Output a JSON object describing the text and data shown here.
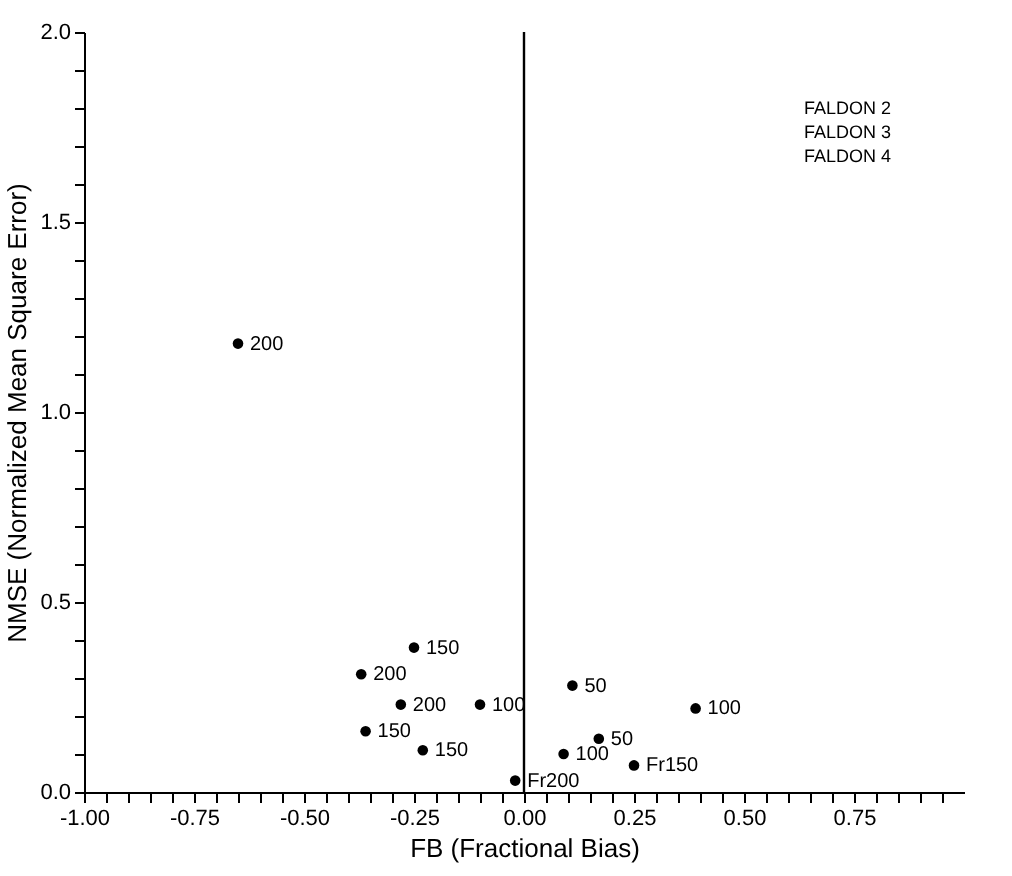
{
  "chart_data": {
    "type": "scatter",
    "xlabel": "FB (Fractional Bias)",
    "ylabel": "NMSE (Normalized Mean Square Error)",
    "x": [
      -0.65,
      -0.37,
      -0.25,
      -0.28,
      -0.1,
      -0.36,
      -0.23,
      -0.02,
      0.11,
      0.09,
      0.17,
      0.25,
      0.39
    ],
    "values": [
      1.18,
      0.31,
      0.38,
      0.23,
      0.23,
      0.16,
      0.11,
      0.03,
      0.28,
      0.1,
      0.14,
      0.07,
      0.22
    ],
    "color": "#000000",
    "marker": "circle",
    "grid": false,
    "xlim": [
      -1,
      1
    ],
    "xticks": [
      {
        "value": -1,
        "label": "-1.00"
      },
      {
        "value": -0.95,
        "label": null
      },
      {
        "value": -0.9,
        "label": null
      },
      {
        "value": -0.85,
        "label": null
      },
      {
        "value": -0.8,
        "label": null
      },
      {
        "value": -0.75,
        "label": "-0.75"
      },
      {
        "value": -0.7,
        "label": null
      },
      {
        "value": -0.65,
        "label": null
      },
      {
        "value": -0.6,
        "label": null
      },
      {
        "value": -0.55,
        "label": null
      },
      {
        "value": -0.5,
        "label": "-0.50"
      },
      {
        "value": -0.45,
        "label": null
      },
      {
        "value": -0.4,
        "label": null
      },
      {
        "value": -0.35,
        "label": null
      },
      {
        "value": -0.3,
        "label": null
      },
      {
        "value": -0.25,
        "label": "-0.25"
      },
      {
        "value": -0.2,
        "label": null
      },
      {
        "value": -0.15,
        "label": null
      },
      {
        "value": -0.1,
        "label": null
      },
      {
        "value": -0.05,
        "label": null
      },
      {
        "value": 0,
        "label": "0.00"
      },
      {
        "value": 0.05,
        "label": null
      },
      {
        "value": 0.1,
        "label": null
      },
      {
        "value": 0.15,
        "label": null
      },
      {
        "value": 0.2,
        "label": null
      },
      {
        "value": 0.25,
        "label": "0.25"
      },
      {
        "value": 0.3,
        "label": null
      },
      {
        "value": 0.35,
        "label": null
      },
      {
        "value": 0.4,
        "label": null
      },
      {
        "value": 0.45,
        "label": null
      },
      {
        "value": 0.5,
        "label": "0.50"
      },
      {
        "value": 0.55,
        "label": null
      },
      {
        "value": 0.6,
        "label": null
      },
      {
        "value": 0.65,
        "label": null
      },
      {
        "value": 0.7,
        "label": null
      },
      {
        "value": 0.75,
        "label": "0.75"
      },
      {
        "value": 0.8,
        "label": null
      },
      {
        "value": 0.85,
        "label": null
      },
      {
        "value": 0.9,
        "label": null
      },
      {
        "value": 0.95,
        "label": null
      }
    ],
    "ylim": [
      0,
      2
    ],
    "yticks": [
      {
        "value": 0,
        "label": "0.0"
      },
      {
        "value": 0.1,
        "label": null
      },
      {
        "value": 0.2,
        "label": null
      },
      {
        "value": 0.3,
        "label": null
      },
      {
        "value": 0.4,
        "label": null
      },
      {
        "value": 0.5,
        "label": "0.5"
      },
      {
        "value": 0.6,
        "label": null
      },
      {
        "value": 0.7,
        "label": null
      },
      {
        "value": 0.8,
        "label": null
      },
      {
        "value": 0.9,
        "label": null
      },
      {
        "value": 1,
        "label": "1.0"
      },
      {
        "value": 1.1,
        "label": null
      },
      {
        "value": 1.2,
        "label": null
      },
      {
        "value": 1.3,
        "label": null
      },
      {
        "value": 1.4,
        "label": null
      },
      {
        "value": 1.5,
        "label": "1.5"
      },
      {
        "value": 1.6,
        "label": null
      },
      {
        "value": 1.7,
        "label": null
      },
      {
        "value": 1.8,
        "label": null
      },
      {
        "value": 1.9,
        "label": null
      },
      {
        "value": 2,
        "label": "2.0"
      }
    ],
    "ref_lines": [
      {
        "axis": "x",
        "value": 0
      }
    ],
    "annotations": [
      "FALDON 2",
      "FALDON 3",
      "FALDON 4",
      {
        "text": "200",
        "x": -0.65,
        "y": 1.18
      },
      {
        "text": "200",
        "x": -0.37,
        "y": 0.31
      },
      {
        "text": "150",
        "x": -0.25,
        "y": 0.38
      },
      {
        "text": "200",
        "x": -0.28,
        "y": 0.23
      },
      {
        "text": "100",
        "x": -0.1,
        "y": 0.23
      },
      {
        "text": "150",
        "x": -0.36,
        "y": 0.16
      },
      {
        "text": "150",
        "x": -0.23,
        "y": 0.11
      },
      {
        "text": "Fr200",
        "x": -0.02,
        "y": 0.03
      },
      {
        "text": "50",
        "x": 0.11,
        "y": 0.28
      },
      {
        "text": "100",
        "x": 0.09,
        "y": 0.1
      },
      {
        "text": "50",
        "x": 0.17,
        "y": 0.14
      },
      {
        "text": "Fr150",
        "x": 0.25,
        "y": 0.07
      },
      {
        "text": "100",
        "x": 0.39,
        "y": 0.22
      }
    ]
  }
}
